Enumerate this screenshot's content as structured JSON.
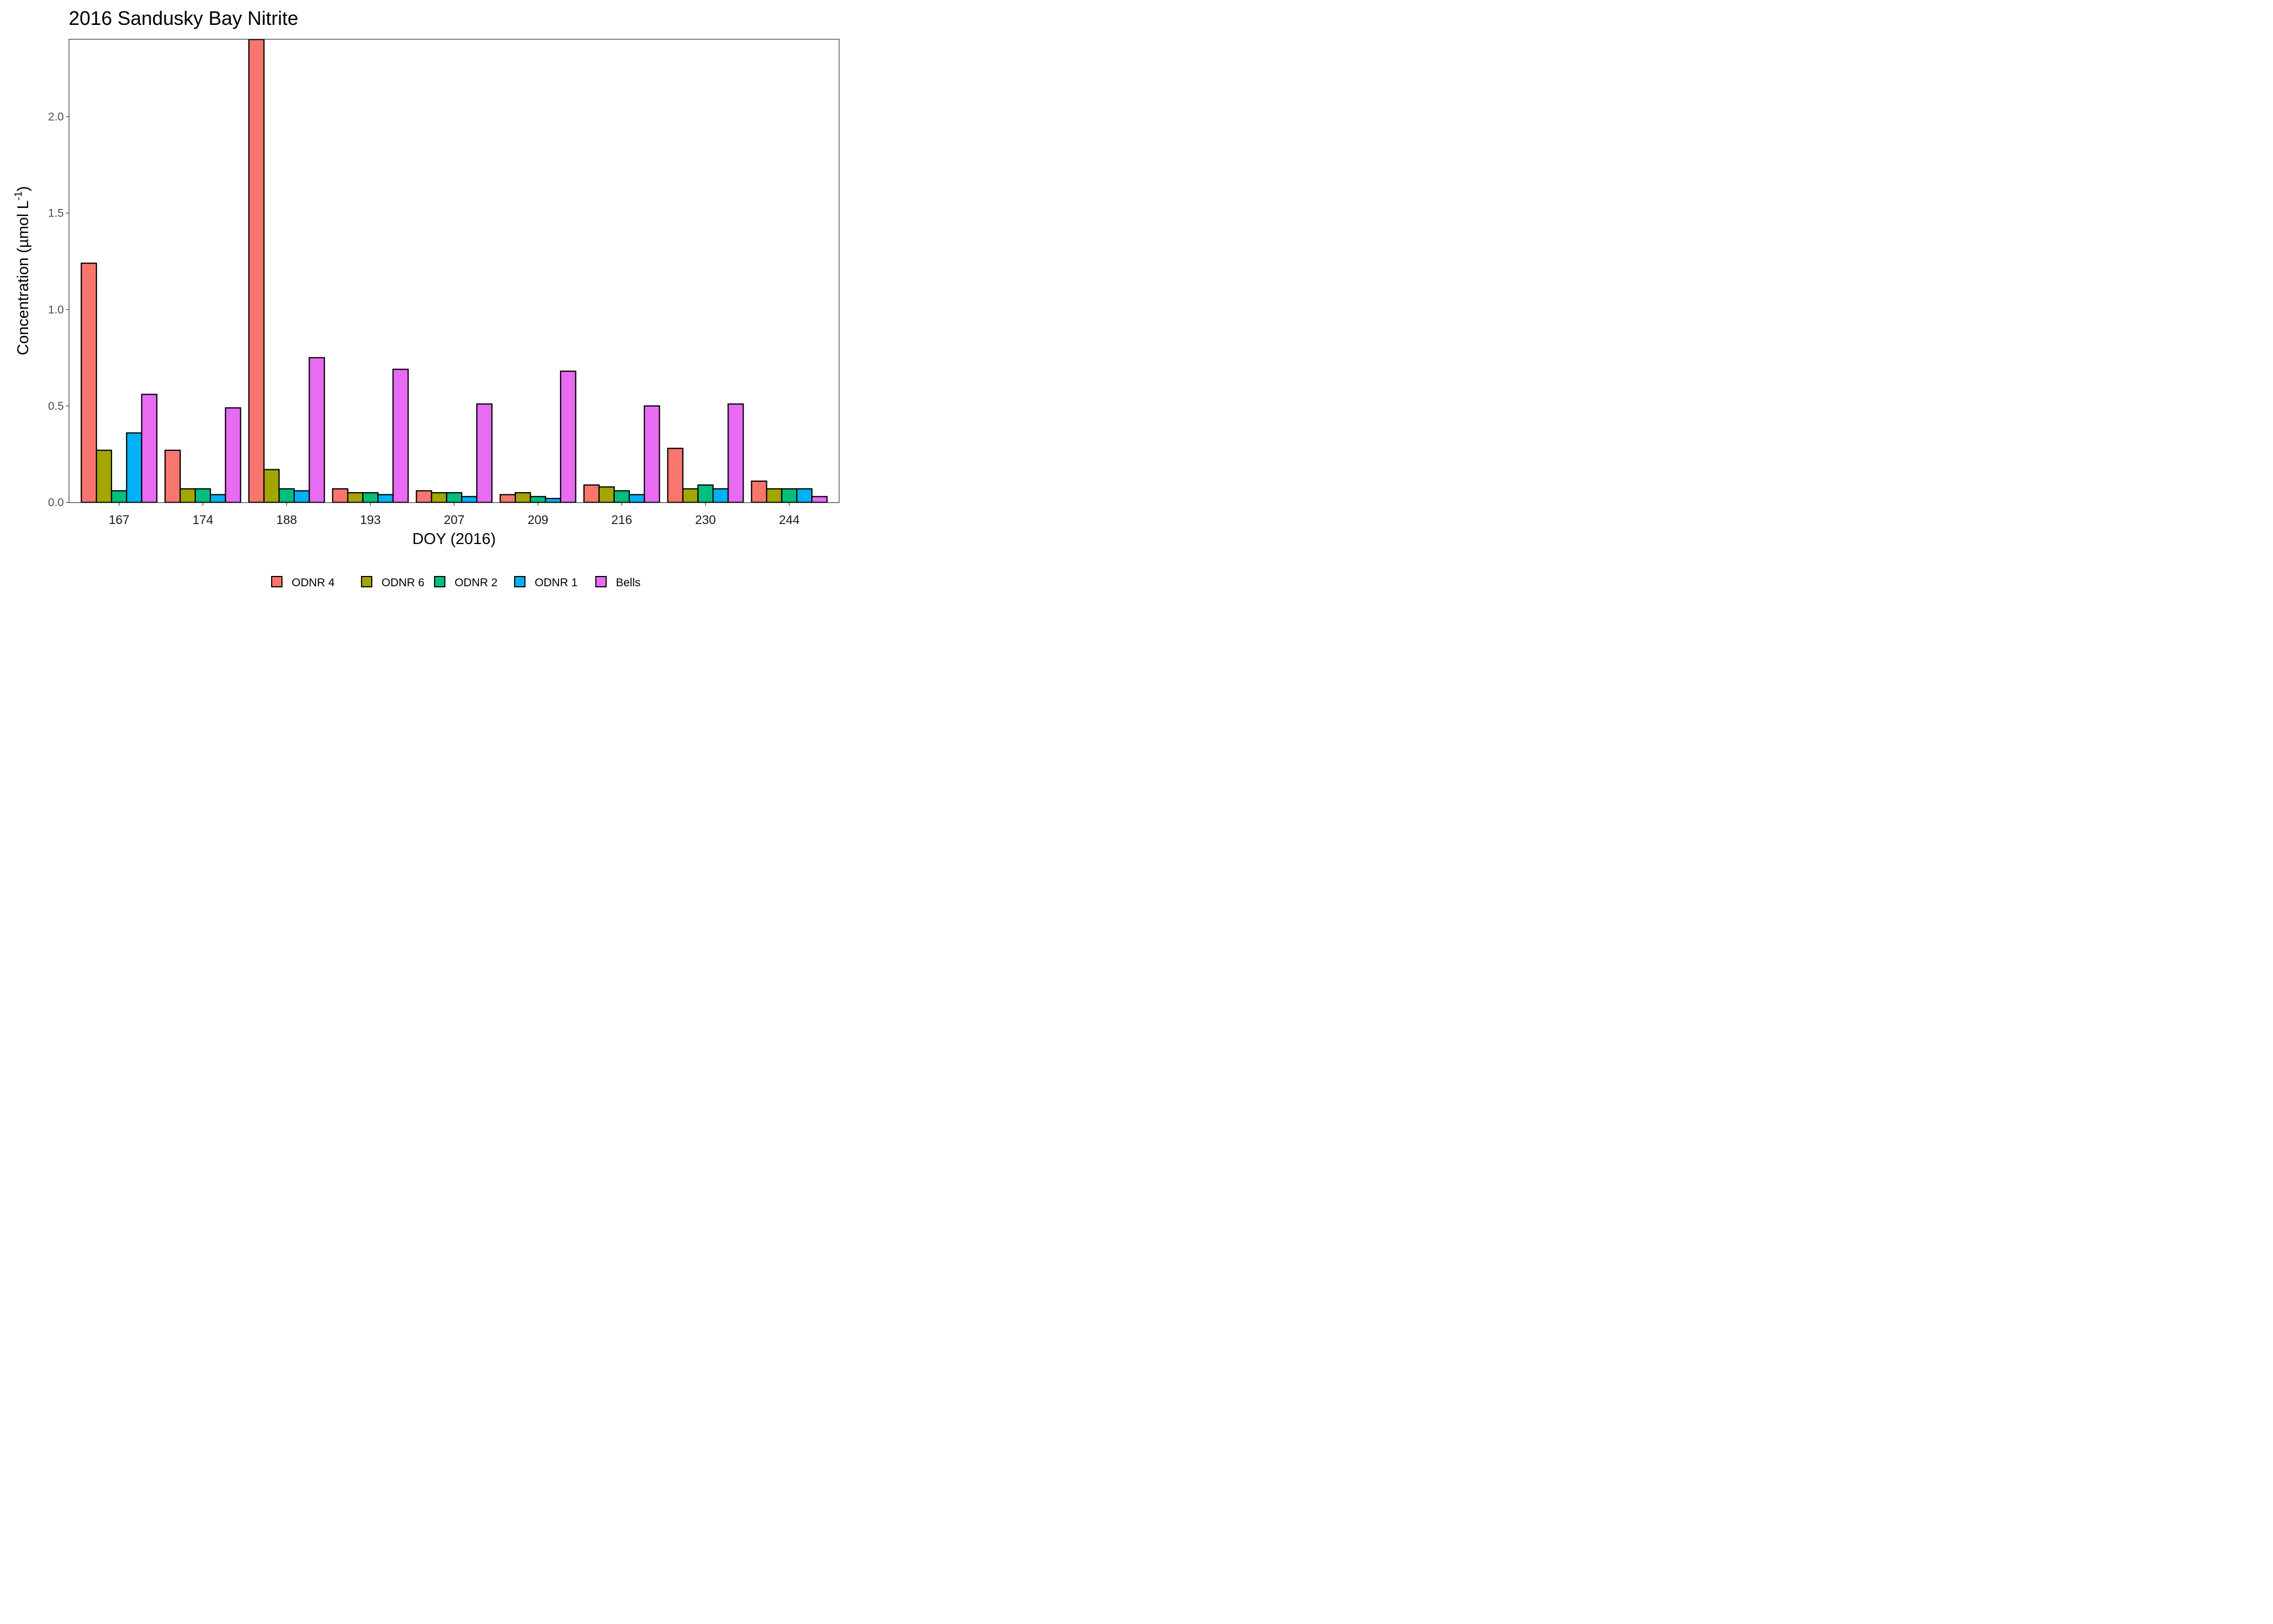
{
  "chart_data": {
    "type": "bar",
    "title": "2016 Sandusky Bay Nitrite",
    "xlabel": "DOY (2016)",
    "ylabel": {
      "prefix": "Concentration (µmol L",
      "superscript": "-1",
      "suffix": ")"
    },
    "ylim": [
      0,
      2.4
    ],
    "yticks": [
      "0.0",
      "0.5",
      "1.0",
      "1.5",
      "2.0"
    ],
    "grid": false,
    "legend_position": "bottom",
    "categories": [
      "167",
      "174",
      "188",
      "193",
      "207",
      "209",
      "216",
      "230",
      "244"
    ],
    "series": [
      {
        "name": "ODNR 4",
        "color": "#F8766D",
        "values": [
          1.24,
          0.27,
          2.4,
          0.07,
          0.06,
          0.04,
          0.09,
          0.28,
          0.11
        ]
      },
      {
        "name": "ODNR 6",
        "color": "#A3A500",
        "values": [
          0.27,
          0.07,
          0.17,
          0.05,
          0.05,
          0.05,
          0.08,
          0.07,
          0.07
        ]
      },
      {
        "name": "ODNR 2",
        "color": "#00BF7D",
        "values": [
          0.06,
          0.07,
          0.07,
          0.05,
          0.05,
          0.03,
          0.06,
          0.09,
          0.07
        ]
      },
      {
        "name": "ODNR 1",
        "color": "#00B0F6",
        "values": [
          0.36,
          0.04,
          0.06,
          0.04,
          0.03,
          0.02,
          0.04,
          0.07,
          0.07
        ]
      },
      {
        "name": "Bells",
        "color": "#E76BF3",
        "values": [
          0.56,
          0.49,
          0.75,
          0.69,
          0.51,
          0.68,
          0.5,
          0.51,
          0.03
        ]
      }
    ]
  }
}
